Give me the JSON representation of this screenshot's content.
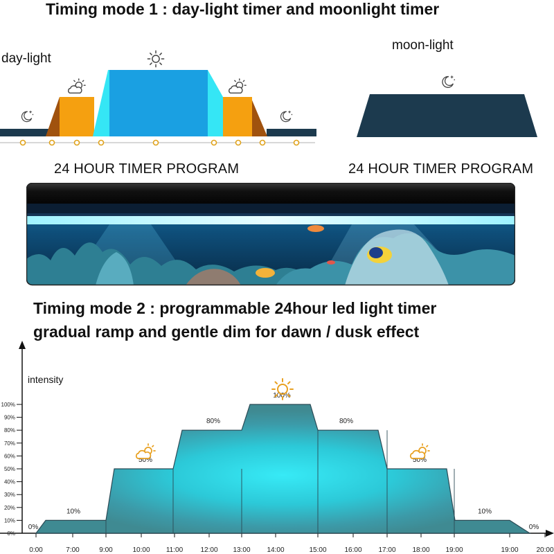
{
  "mode1": {
    "title": "Timing mode 1 : day-light timer and moonlight timer",
    "daylight_label": "day-light",
    "moonlight_label": "moon-light",
    "program_label_left": "24 HOUR TIMER PROGRAM",
    "program_label_right": "24 HOUR TIMER PROGRAM"
  },
  "mode2": {
    "title_line1": "Timing mode 2 : programmable 24hour led light timer",
    "title_line2": "gradual ramp and gentle dim for dawn / dusk effect"
  },
  "icons": {
    "sun": "sun-icon",
    "sun_cloud": "sun-cloud-icon",
    "moon": "moon-stars-icon",
    "aquarium": "aquarium-led-light-photo"
  },
  "colors": {
    "navy": "#1c3a4e",
    "orange": "#f39c12",
    "brown": "#a0520e",
    "cyan": "#2fe3f2",
    "blue": "#1a9fe0",
    "teal": "#3f8a92",
    "dot": "#e0a31c"
  },
  "chart_data": {
    "type": "area",
    "ylabel": "intensity",
    "y_ticks": [
      "0%",
      "10%",
      "20%",
      "30%",
      "40%",
      "50%",
      "60%",
      "70%",
      "80%",
      "90%",
      "100%"
    ],
    "ylim": [
      0,
      100
    ],
    "x_ticks": [
      "0:00",
      "7:00",
      "9:00",
      "10:00",
      "11:00",
      "12:00",
      "13:00",
      "14:00",
      "15:00",
      "16:00",
      "17:00",
      "18:00",
      "19:00",
      "19:00",
      "20:00"
    ],
    "segments": [
      {
        "label": "0%",
        "value": 0
      },
      {
        "label": "10%",
        "value": 10
      },
      {
        "label": "50%",
        "value": 50
      },
      {
        "label": "80%",
        "value": 80
      },
      {
        "label": "100%",
        "value": 100
      },
      {
        "label": "80%",
        "value": 80
      },
      {
        "label": "50%",
        "value": 50
      },
      {
        "label": "10%",
        "value": 10
      },
      {
        "label": "0%",
        "value": 0
      }
    ]
  }
}
